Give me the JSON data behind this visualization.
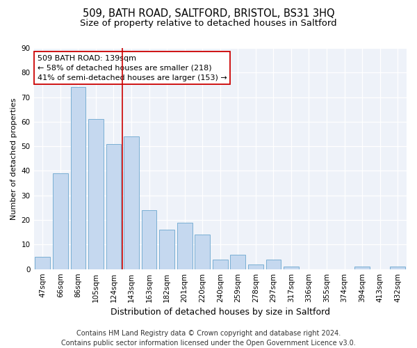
{
  "title1": "509, BATH ROAD, SALTFORD, BRISTOL, BS31 3HQ",
  "title2": "Size of property relative to detached houses in Saltford",
  "xlabel": "Distribution of detached houses by size in Saltford",
  "ylabel": "Number of detached properties",
  "categories": [
    "47sqm",
    "66sqm",
    "86sqm",
    "105sqm",
    "124sqm",
    "143sqm",
    "163sqm",
    "182sqm",
    "201sqm",
    "220sqm",
    "240sqm",
    "259sqm",
    "278sqm",
    "297sqm",
    "317sqm",
    "336sqm",
    "355sqm",
    "374sqm",
    "394sqm",
    "413sqm",
    "432sqm"
  ],
  "values": [
    5,
    39,
    74,
    61,
    51,
    54,
    24,
    16,
    19,
    14,
    4,
    6,
    2,
    4,
    1,
    0,
    0,
    0,
    1,
    0,
    1
  ],
  "bar_color": "#c5d8ef",
  "bar_edge_color": "#7aafd4",
  "vline_color": "#cc0000",
  "annotation_text": "509 BATH ROAD: 139sqm\n← 58% of detached houses are smaller (218)\n41% of semi-detached houses are larger (153) →",
  "annotation_box_color": "white",
  "annotation_box_edge_color": "#cc0000",
  "ylim": [
    0,
    90
  ],
  "yticks": [
    0,
    10,
    20,
    30,
    40,
    50,
    60,
    70,
    80,
    90
  ],
  "footer1": "Contains HM Land Registry data © Crown copyright and database right 2024.",
  "footer2": "Contains public sector information licensed under the Open Government Licence v3.0.",
  "bg_color": "white",
  "plot_bg_color": "#eef2f9",
  "title1_fontsize": 10.5,
  "title2_fontsize": 9.5,
  "xlabel_fontsize": 9,
  "ylabel_fontsize": 8,
  "tick_fontsize": 7.5,
  "footer_fontsize": 7,
  "annotation_fontsize": 8
}
